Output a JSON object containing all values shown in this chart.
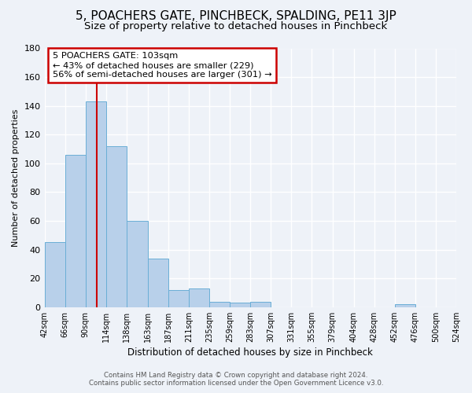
{
  "title": "5, POACHERS GATE, PINCHBECK, SPALDING, PE11 3JP",
  "subtitle": "Size of property relative to detached houses in Pinchbeck",
  "xlabel": "Distribution of detached houses by size in Pinchbeck",
  "ylabel": "Number of detached properties",
  "bar_values": [
    45,
    106,
    143,
    112,
    60,
    34,
    12,
    13,
    4,
    3,
    4,
    0,
    0,
    0,
    0,
    0,
    0,
    2,
    0,
    0
  ],
  "bin_labels": [
    "42sqm",
    "66sqm",
    "90sqm",
    "114sqm",
    "138sqm",
    "163sqm",
    "187sqm",
    "211sqm",
    "235sqm",
    "259sqm",
    "283sqm",
    "307sqm",
    "331sqm",
    "355sqm",
    "379sqm",
    "404sqm",
    "428sqm",
    "452sqm",
    "476sqm",
    "500sqm",
    "524sqm"
  ],
  "bin_edges": [
    42,
    66,
    90,
    114,
    138,
    163,
    187,
    211,
    235,
    259,
    283,
    307,
    331,
    355,
    379,
    404,
    428,
    452,
    476,
    500,
    524
  ],
  "bar_color": "#b8d0ea",
  "bar_edge_color": "#6aaed6",
  "vline_x": 103,
  "vline_color": "#cc0000",
  "ylim": [
    0,
    180
  ],
  "yticks": [
    0,
    20,
    40,
    60,
    80,
    100,
    120,
    140,
    160,
    180
  ],
  "annotation_title": "5 POACHERS GATE: 103sqm",
  "annotation_line1": "← 43% of detached houses are smaller (229)",
  "annotation_line2": "56% of semi-detached houses are larger (301) →",
  "annotation_box_color": "#ffffff",
  "annotation_box_edge": "#cc0000",
  "footer_line1": "Contains HM Land Registry data © Crown copyright and database right 2024.",
  "footer_line2": "Contains public sector information licensed under the Open Government Licence v3.0.",
  "background_color": "#eef2f8",
  "grid_color": "#ffffff",
  "title_fontsize": 11,
  "subtitle_fontsize": 9.5
}
